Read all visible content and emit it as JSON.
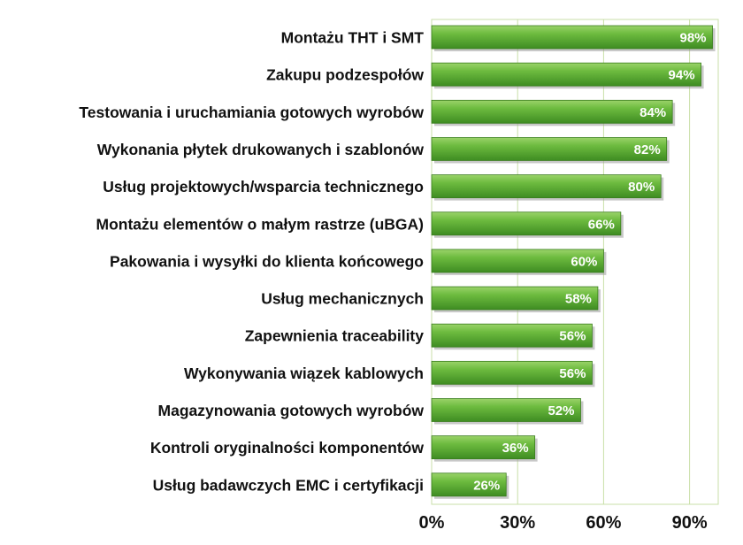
{
  "chart_data": {
    "type": "bar",
    "orientation": "horizontal",
    "categories": [
      "Montażu THT i SMT",
      "Zakupu podzespołów",
      "Testowania i uruchamiania gotowych wyrobów",
      "Wykonania płytek drukowanych i szablonów",
      "Usług projektowych/wsparcia technicznego",
      "Montażu elementów o małym rastrze (uBGA)",
      "Pakowania i wysyłki do klienta końcowego",
      "Usług mechanicznych",
      "Zapewnienia traceability",
      "Wykonywania wiązek kablowych",
      "Magazynowania gotowych wyrobów",
      "Kontroli oryginalności komponentów",
      "Usług badawczych EMC i certyfikacji"
    ],
    "values": [
      98,
      94,
      84,
      82,
      80,
      66,
      60,
      58,
      56,
      56,
      52,
      36,
      26
    ],
    "data_labels": [
      "98%",
      "94%",
      "84%",
      "82%",
      "80%",
      "66%",
      "60%",
      "58%",
      "56%",
      "56%",
      "52%",
      "36%",
      "26%"
    ],
    "xticks": [
      0,
      30,
      60,
      90
    ],
    "xtick_labels": [
      "0%",
      "30%",
      "60%",
      "90%"
    ],
    "xlim": [
      0,
      100
    ],
    "grid": "vertical",
    "legend": "none",
    "bar_color": "#5fae36",
    "grid_color": "#c9dfa8"
  }
}
